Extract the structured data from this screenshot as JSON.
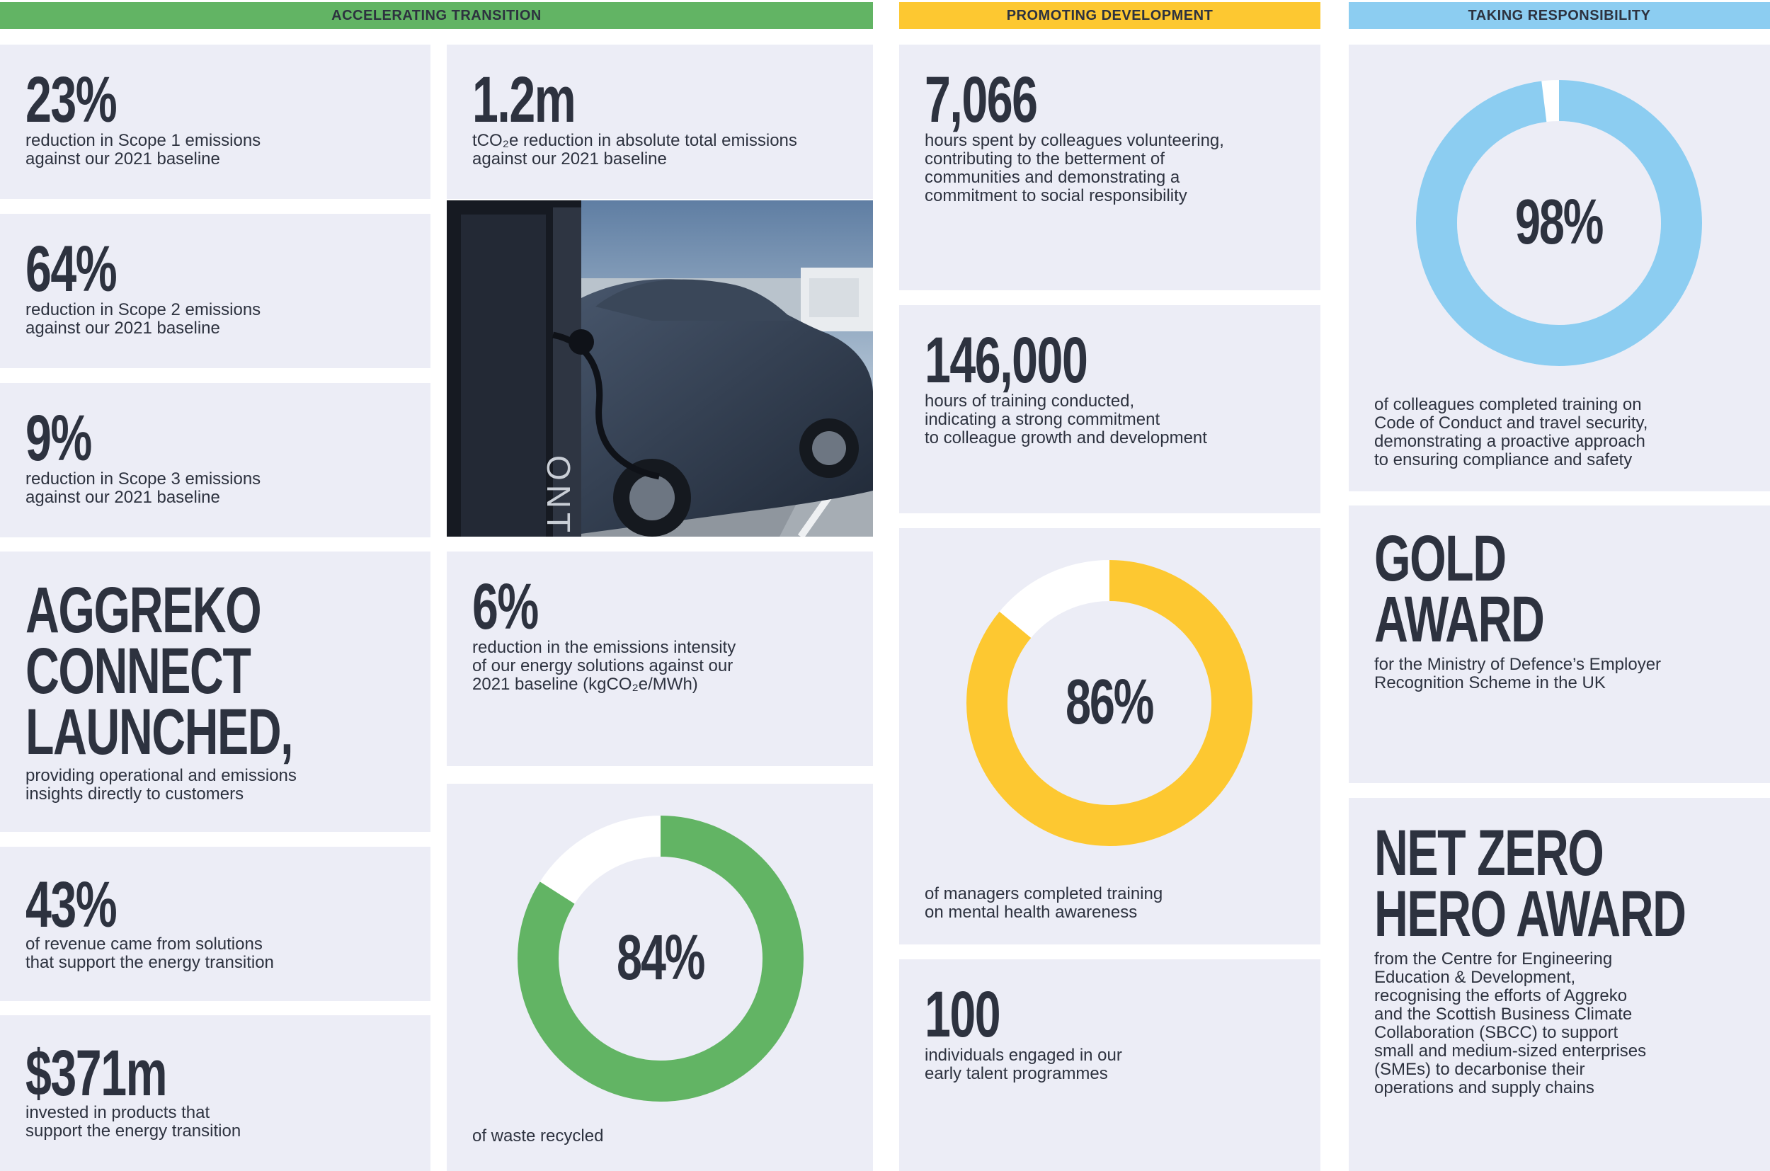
{
  "sections": [
    {
      "title": "ACCELERATING TRANSITION",
      "color": "#62b464"
    },
    {
      "title": "PROMOTING DEVELOPMENT",
      "color": "#fdc831"
    },
    {
      "title": "TAKING RESPONSIBILITY",
      "color": "#8ccdf1"
    }
  ],
  "transition": {
    "scope1": {
      "value": "23%",
      "text": "reduction in Scope 1 emissions\nagainst our 2021 baseline"
    },
    "scope2": {
      "value": "64%",
      "text": "reduction in Scope 2 emissions\nagainst our 2021 baseline"
    },
    "scope3": {
      "value": "9%",
      "text": "reduction in Scope 3 emissions\nagainst our 2021 baseline"
    },
    "connect": {
      "line1": "AGGREKO",
      "line2": "CONNECT",
      "line3": "LAUNCHED,",
      "text": "providing operational and emissions\ninsights directly to customers"
    },
    "revenue": {
      "value": "43%",
      "text": "of revenue came from solutions\nthat support the energy transition"
    },
    "invested": {
      "value": "$371m",
      "text": "invested in products that\nsupport the energy transition"
    },
    "absolute": {
      "value": "1.2m",
      "text": "tCO₂e reduction in absolute total emissions\nagainst our 2021 baseline"
    },
    "intensity": {
      "value": "6%",
      "text": "reduction in the emissions intensity\nof our energy solutions against our\n2021 baseline (kgCO₂e/MWh)"
    },
    "waste": {
      "value": "84%",
      "fraction": 0.84,
      "text": "of waste recycled"
    },
    "photo_text": "ONT"
  },
  "development": {
    "volunteering": {
      "value": "7,066",
      "text": "hours spent by colleagues volunteering,\ncontributing to the betterment of\ncommunities and demonstrating a\ncommitment to social responsibility"
    },
    "training": {
      "value": "146,000",
      "text": "hours of training conducted,\nindicating a strong commitment\nto colleague growth and development"
    },
    "mental": {
      "value": "86%",
      "fraction": 0.86,
      "text": "of managers completed training\non mental health awareness"
    },
    "talent": {
      "value": "100",
      "text": "individuals engaged in our\nearly talent programmes"
    }
  },
  "responsibility": {
    "conduct": {
      "value": "98%",
      "fraction": 0.98,
      "text": "of colleagues completed training on\nCode of Conduct and travel security,\ndemonstrating a proactive approach\nto ensuring compliance and safety"
    },
    "gold": {
      "line1": "GOLD",
      "line2": "AWARD",
      "text": "for the Ministry of Defence’s Employer\nRecognition Scheme in the UK"
    },
    "netzero": {
      "line1": "NET ZERO",
      "line2": "HERO AWARD",
      "text": "from the Centre for Engineering\nEducation & Development,\nrecognising the efforts of Aggreko\nand the Scottish Business Climate\nCollaboration (SBCC) to support\nsmall and medium-sized enterprises\n(SMEs) to decarbonise their\noperations and supply chains"
    }
  },
  "colors": {
    "green": "#62b464",
    "yellow": "#fdc831",
    "blue": "#8ccdf1",
    "track": "#ffffff",
    "card": "#ecedf6",
    "text": "#2d323f"
  }
}
